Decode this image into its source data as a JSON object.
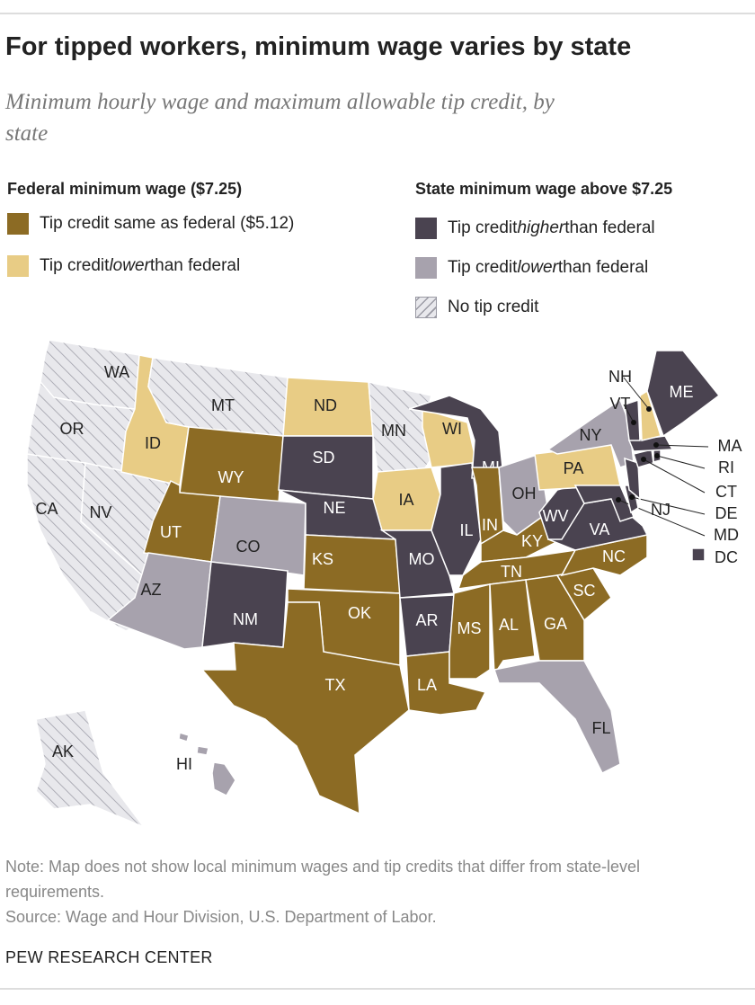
{
  "header": {
    "title": "For tipped workers, minimum wage varies by state",
    "subtitle": "Minimum hourly wage and maximum allowable tip credit, by state"
  },
  "legend": {
    "groups": [
      {
        "title": "Federal minimum wage ($7.25)",
        "items": [
          {
            "key": "same",
            "color": "#8c6b24",
            "label": [
              {
                "text": "Tip credit same as federal ($5.12)"
              }
            ]
          },
          {
            "key": "lower_fed",
            "color": "#e8cc85",
            "label": [
              {
                "text": "Tip credit "
              },
              {
                "text": "lower",
                "italic": true
              },
              {
                "text": " than federal"
              }
            ]
          }
        ]
      },
      {
        "title": "State minimum wage above $7.25",
        "items": [
          {
            "key": "higher",
            "color": "#4a4350",
            "label": [
              {
                "text": "Tip credit "
              },
              {
                "text": "higher",
                "italic": true
              },
              {
                "text": " than federal"
              }
            ]
          },
          {
            "key": "lower_state",
            "color": "#a7a2ad",
            "label": [
              {
                "text": "Tip credit "
              },
              {
                "text": "lower",
                "italic": true
              },
              {
                "text": " than federal"
              }
            ]
          },
          {
            "key": "none",
            "color": "#e8e8ec",
            "hatched": true,
            "label": [
              {
                "text": "No tip credit"
              }
            ]
          }
        ]
      }
    ]
  },
  "states": [
    {
      "label": "WA",
      "category": "none"
    },
    {
      "label": "OR",
      "category": "none"
    },
    {
      "label": "CA",
      "category": "none"
    },
    {
      "label": "NV",
      "category": "none"
    },
    {
      "label": "ID",
      "category": "lower_fed"
    },
    {
      "label": "MT",
      "category": "none"
    },
    {
      "label": "WY",
      "category": "same"
    },
    {
      "label": "UT",
      "category": "same"
    },
    {
      "label": "CO",
      "category": "lower_state"
    },
    {
      "label": "AZ",
      "category": "lower_state"
    },
    {
      "label": "NM",
      "category": "higher"
    },
    {
      "label": "ND",
      "category": "lower_fed"
    },
    {
      "label": "SD",
      "category": "higher"
    },
    {
      "label": "NE",
      "category": "higher"
    },
    {
      "label": "KS",
      "category": "same"
    },
    {
      "label": "OK",
      "category": "same"
    },
    {
      "label": "TX",
      "category": "same"
    },
    {
      "label": "MN",
      "category": "none"
    },
    {
      "label": "IA",
      "category": "lower_fed"
    },
    {
      "label": "MO",
      "category": "higher"
    },
    {
      "label": "AR",
      "category": "higher"
    },
    {
      "label": "LA",
      "category": "same"
    },
    {
      "label": "WI",
      "category": "lower_fed"
    },
    {
      "label": "IL",
      "category": "higher"
    },
    {
      "label": "MI",
      "category": "higher"
    },
    {
      "label": "IN",
      "category": "same"
    },
    {
      "label": "OH",
      "category": "lower_state"
    },
    {
      "label": "KY",
      "category": "same"
    },
    {
      "label": "TN",
      "category": "same"
    },
    {
      "label": "MS",
      "category": "same"
    },
    {
      "label": "AL",
      "category": "same"
    },
    {
      "label": "GA",
      "category": "same"
    },
    {
      "label": "FL",
      "category": "lower_state"
    },
    {
      "label": "SC",
      "category": "same"
    },
    {
      "label": "NC",
      "category": "same"
    },
    {
      "label": "VA",
      "category": "higher"
    },
    {
      "label": "WV",
      "category": "higher"
    },
    {
      "label": "PA",
      "category": "lower_fed"
    },
    {
      "label": "NY",
      "category": "lower_state"
    },
    {
      "label": "MD",
      "category": "higher"
    },
    {
      "label": "DE",
      "category": "higher"
    },
    {
      "label": "NJ",
      "category": "higher"
    },
    {
      "label": "CT",
      "category": "higher"
    },
    {
      "label": "RI",
      "category": "higher"
    },
    {
      "label": "MA",
      "category": "higher"
    },
    {
      "label": "VT",
      "category": "higher"
    },
    {
      "label": "NH",
      "category": "lower_fed"
    },
    {
      "label": "ME",
      "category": "higher"
    },
    {
      "label": "DC",
      "category": "higher"
    },
    {
      "label": "AK",
      "category": "none"
    },
    {
      "label": "HI",
      "category": "lower_state"
    }
  ],
  "note": "Note: Map does not show local minimum wages and tip credits that differ from state-level requirements.",
  "source": "Source: Wage and Hour Division, U.S. Department of Labor.",
  "footer": "PEW RESEARCH CENTER"
}
